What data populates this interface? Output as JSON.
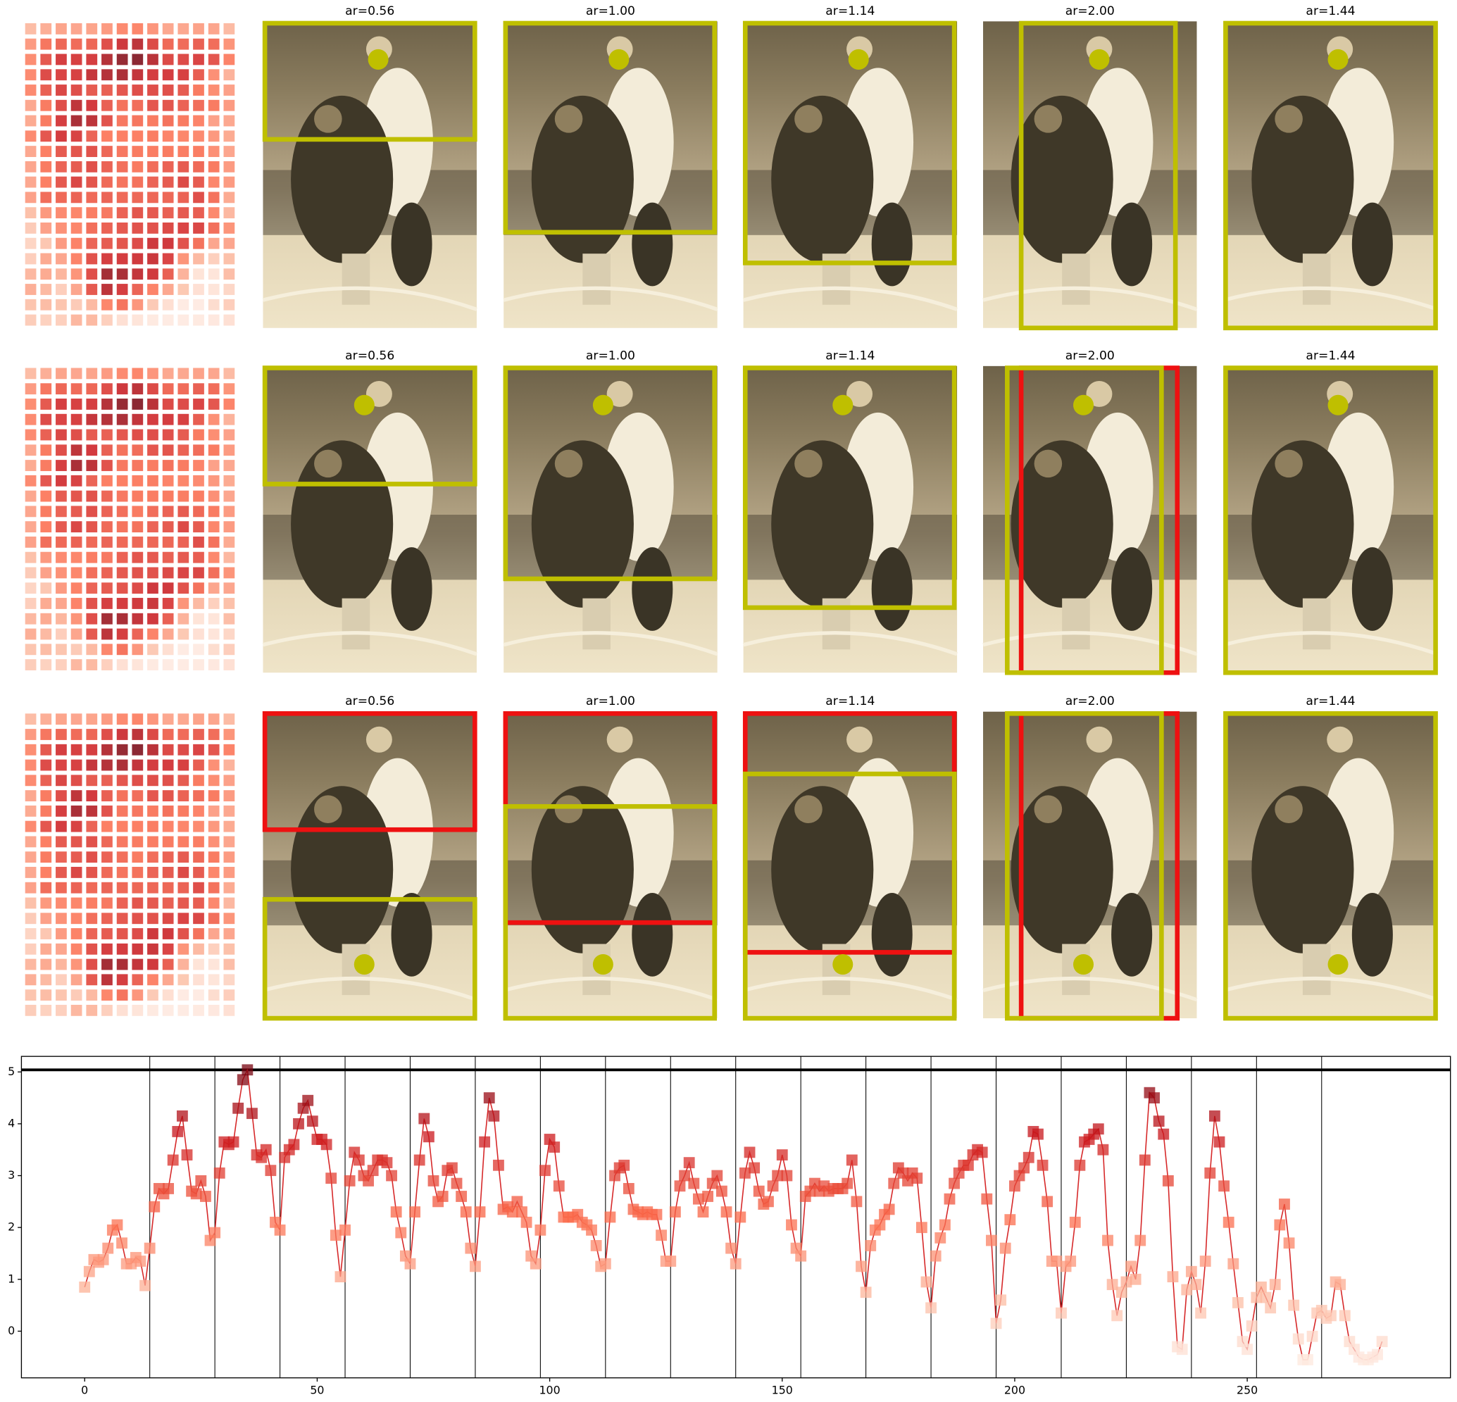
{
  "figure": {
    "panel_rows": [
      {
        "titles": [
          "ar=0.56",
          "ar=1.00",
          "ar=1.14",
          "ar=2.00",
          "ar=1.44"
        ]
      },
      {
        "titles": [
          "ar=0.56",
          "ar=1.00",
          "ar=1.14",
          "ar=2.00",
          "ar=1.44"
        ]
      },
      {
        "titles": [
          "ar=0.56",
          "ar=1.00",
          "ar=1.14",
          "ar=2.00",
          "ar=1.44"
        ]
      }
    ]
  },
  "chart_data": {
    "type": "line",
    "x": [
      0,
      1,
      2,
      3,
      4,
      5,
      6,
      7,
      8,
      9,
      10,
      11,
      12,
      13,
      14,
      15,
      16,
      17,
      18,
      19,
      20,
      21,
      22,
      23,
      24,
      25,
      26,
      27,
      28,
      29,
      30,
      31,
      32,
      33,
      34,
      35,
      36,
      37,
      38,
      39,
      40,
      41,
      42,
      43,
      44,
      45,
      46,
      47,
      48,
      49,
      50,
      51,
      52,
      53,
      54,
      55,
      56,
      57,
      58,
      59,
      60,
      61,
      62,
      63,
      64,
      65,
      66,
      67,
      68,
      69,
      70,
      71,
      72,
      73,
      74,
      75,
      76,
      77,
      78,
      79,
      80,
      81,
      82,
      83,
      84,
      85,
      86,
      87,
      88,
      89,
      90,
      91,
      92,
      93,
      94,
      95,
      96,
      97,
      98,
      99,
      100,
      101,
      102,
      103,
      104,
      105,
      106,
      107,
      108,
      109,
      110,
      111,
      112,
      113,
      114,
      115,
      116,
      117,
      118,
      119,
      120,
      121,
      122,
      123,
      124,
      125,
      126,
      127,
      128,
      129,
      130,
      131,
      132,
      133,
      134,
      135,
      136,
      137,
      138,
      139,
      140,
      141,
      142,
      143,
      144,
      145,
      146,
      147,
      148,
      149,
      150,
      151,
      152,
      153,
      154,
      155,
      156,
      157,
      158,
      159,
      160,
      161,
      162,
      163,
      164,
      165,
      166,
      167,
      168,
      169,
      170,
      171,
      172,
      173,
      174,
      175,
      176,
      177,
      178,
      179,
      180,
      181,
      182,
      183,
      184,
      185,
      186,
      187,
      188,
      189,
      190,
      191,
      192,
      193,
      194,
      195,
      196,
      197,
      198,
      199,
      200,
      201,
      202,
      203,
      204,
      205,
      206,
      207,
      208,
      209,
      210,
      211,
      212,
      213,
      214,
      215,
      216,
      217,
      218,
      219,
      220,
      221,
      222,
      223,
      224,
      225,
      226,
      227,
      228,
      229,
      230,
      231,
      232,
      233,
      234,
      235,
      236,
      237,
      238,
      239,
      240,
      241,
      242,
      243,
      244,
      245,
      246,
      247,
      248,
      249,
      250,
      251,
      252,
      253,
      254,
      255,
      256,
      257,
      258,
      259,
      260,
      261,
      262,
      263,
      264,
      265,
      266,
      267,
      268,
      269,
      270,
      271,
      272,
      273,
      274,
      275,
      276,
      277,
      278,
      279
    ],
    "series": [
      {
        "color": "#d62728",
        "values": [
          0.85,
          1.15,
          1.38,
          1.33,
          1.38,
          1.6,
          1.95,
          2.05,
          1.7,
          1.3,
          1.3,
          1.42,
          1.35,
          0.88,
          1.6,
          2.4,
          2.75,
          2.65,
          2.75,
          3.3,
          3.85,
          4.15,
          3.4,
          2.7,
          2.65,
          2.9,
          2.6,
          1.75,
          1.9,
          3.05,
          3.65,
          3.6,
          3.65,
          4.3,
          4.85,
          5.04,
          4.2,
          3.4,
          3.35,
          3.5,
          3.1,
          2.1,
          1.95,
          3.35,
          3.5,
          3.6,
          4.0,
          4.3,
          4.45,
          4.05,
          3.7,
          3.7,
          3.6,
          2.95,
          1.85,
          1.05,
          1.95,
          2.9,
          3.45,
          3.3,
          3.0,
          2.9,
          3.1,
          3.3,
          3.3,
          3.25,
          3.0,
          2.3,
          1.9,
          1.45,
          1.3,
          2.3,
          3.3,
          4.1,
          3.75,
          2.9,
          2.5,
          2.6,
          3.1,
          3.15,
          2.85,
          2.6,
          2.3,
          1.6,
          1.25,
          2.3,
          3.65,
          4.5,
          4.15,
          3.2,
          2.35,
          2.4,
          2.3,
          2.5,
          2.3,
          2.1,
          1.45,
          1.3,
          1.95,
          3.1,
          3.7,
          3.55,
          2.8,
          2.2,
          2.2,
          2.2,
          2.25,
          2.1,
          2.05,
          1.95,
          1.65,
          1.25,
          1.3,
          2.2,
          3.0,
          3.15,
          3.2,
          2.75,
          2.35,
          2.3,
          2.25,
          2.3,
          2.25,
          2.25,
          1.85,
          1.35,
          1.35,
          2.3,
          2.8,
          3.0,
          3.25,
          2.85,
          2.55,
          2.3,
          2.6,
          2.85,
          3.0,
          2.7,
          2.3,
          1.6,
          1.3,
          2.2,
          3.05,
          3.45,
          3.15,
          2.7,
          2.45,
          2.5,
          2.8,
          3.0,
          3.4,
          3.0,
          2.05,
          1.6,
          1.45,
          2.6,
          2.7,
          2.85,
          2.7,
          2.8,
          2.7,
          2.75,
          2.75,
          2.75,
          2.85,
          3.3,
          2.5,
          1.25,
          0.75,
          1.65,
          1.95,
          2.05,
          2.25,
          2.35,
          2.85,
          3.15,
          3.05,
          2.9,
          3.05,
          2.95,
          2.0,
          0.95,
          0.45,
          1.45,
          1.8,
          2.05,
          2.55,
          2.85,
          3.05,
          3.2,
          3.2,
          3.4,
          3.5,
          3.45,
          2.55,
          1.75,
          0.15,
          0.6,
          1.6,
          2.15,
          2.8,
          3.0,
          3.15,
          3.35,
          3.85,
          3.8,
          3.2,
          2.5,
          1.35,
          1.35,
          0.35,
          1.25,
          1.35,
          2.1,
          3.2,
          3.65,
          3.7,
          3.8,
          3.9,
          3.5,
          1.75,
          0.9,
          0.3,
          0.75,
          0.95,
          1.25,
          1.0,
          1.75,
          3.3,
          4.6,
          4.5,
          4.05,
          3.8,
          2.9,
          1.05,
          -0.3,
          -0.35,
          0.8,
          1.15,
          0.9,
          0.35,
          1.35,
          3.05,
          4.15,
          3.65,
          2.8,
          2.1,
          1.3,
          0.55,
          -0.2,
          -0.35,
          0.1,
          0.65,
          0.85,
          0.65,
          0.45,
          0.9,
          2.05,
          2.45,
          1.7,
          0.5,
          -0.15,
          -0.55,
          -0.55,
          -0.1,
          0.35,
          0.4,
          0.25,
          0.3,
          0.95,
          0.9,
          0.3,
          -0.2,
          -0.35,
          -0.5,
          -0.55,
          -0.55,
          -0.5,
          -0.45,
          -0.2
        ]
      }
    ],
    "xlim": [
      -13.6,
      293.7
    ],
    "ylim": [
      -0.9,
      5.3
    ],
    "xticks": [
      0,
      50,
      100,
      150,
      200,
      250
    ],
    "yticks": [
      0,
      1,
      2,
      3,
      4,
      5
    ],
    "vlines": [
      14,
      28,
      42,
      56,
      70,
      84,
      98,
      112,
      126,
      140,
      154,
      168,
      182,
      196,
      210,
      224,
      238,
      252,
      266
    ],
    "hline": 5.04,
    "cmap": [
      "#fff5f0",
      "#fcbba1",
      "#fb6a4a",
      "#cb181d",
      "#67000d"
    ]
  }
}
